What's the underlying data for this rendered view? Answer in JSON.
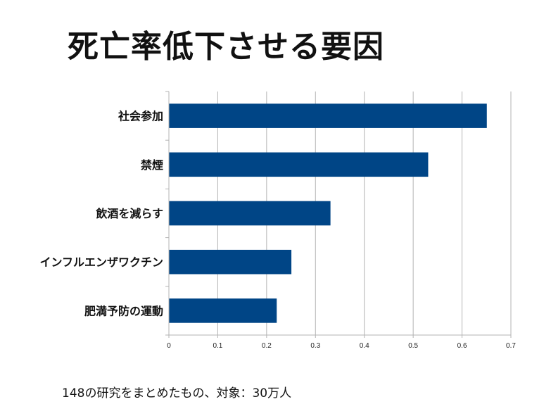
{
  "title": "死亡率低下させる要因",
  "note": "148の研究をまとめたもの、対象：30万人",
  "colors": {
    "bar": "#004586",
    "grid": "#b3b3b3",
    "axis": "#b3b3b3"
  },
  "chart_data": {
    "type": "bar",
    "orientation": "horizontal",
    "title": "死亡率低下させる要因",
    "categories": [
      "社会参加",
      "禁煙",
      "飲酒を減らす",
      "インフルエンザワクチン",
      "肥満予防の運動"
    ],
    "values": [
      0.65,
      0.53,
      0.33,
      0.25,
      0.22
    ],
    "xlim": [
      0,
      0.7
    ],
    "xticks": [
      "0",
      "0.1",
      "0.2",
      "0.3",
      "0.4",
      "0.5",
      "0.6",
      "0.7"
    ],
    "xlabel": "",
    "ylabel": "",
    "grid": true,
    "legend": "none"
  }
}
